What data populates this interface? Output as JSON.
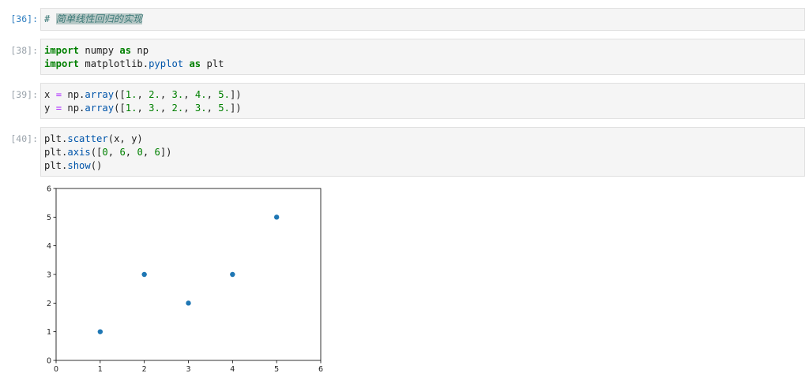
{
  "cells": [
    {
      "prompt": "[36]:",
      "lines": [
        [
          {
            "t": "# ",
            "c": "comment-text"
          },
          {
            "t": "简单线性回归的实现",
            "c": "comment-text comment-hl"
          }
        ]
      ]
    },
    {
      "prompt": "[38]:",
      "lines": [
        [
          {
            "t": "import",
            "c": "kw"
          },
          {
            "t": " numpy ",
            "c": ""
          },
          {
            "t": "as",
            "c": "kw"
          },
          {
            "t": " np",
            "c": ""
          }
        ],
        [
          {
            "t": "import",
            "c": "kw"
          },
          {
            "t": " matplotlib.",
            "c": ""
          },
          {
            "t": "pyplot",
            "c": "fn"
          },
          {
            "t": " ",
            "c": ""
          },
          {
            "t": "as",
            "c": "kw"
          },
          {
            "t": " plt",
            "c": ""
          }
        ]
      ]
    },
    {
      "prompt": "[39]:",
      "lines": [
        [
          {
            "t": "x ",
            "c": ""
          },
          {
            "t": "=",
            "c": "op"
          },
          {
            "t": " np.",
            "c": ""
          },
          {
            "t": "array",
            "c": "fn"
          },
          {
            "t": "([",
            "c": ""
          },
          {
            "t": "1.",
            "c": "num"
          },
          {
            "t": ", ",
            "c": ""
          },
          {
            "t": "2.",
            "c": "num"
          },
          {
            "t": ", ",
            "c": ""
          },
          {
            "t": "3.",
            "c": "num"
          },
          {
            "t": ", ",
            "c": ""
          },
          {
            "t": "4.",
            "c": "num"
          },
          {
            "t": ", ",
            "c": ""
          },
          {
            "t": "5.",
            "c": "num"
          },
          {
            "t": "])",
            "c": ""
          }
        ],
        [
          {
            "t": "y ",
            "c": ""
          },
          {
            "t": "=",
            "c": "op"
          },
          {
            "t": " np.",
            "c": ""
          },
          {
            "t": "array",
            "c": "fn"
          },
          {
            "t": "([",
            "c": ""
          },
          {
            "t": "1.",
            "c": "num"
          },
          {
            "t": ", ",
            "c": ""
          },
          {
            "t": "3.",
            "c": "num"
          },
          {
            "t": ", ",
            "c": ""
          },
          {
            "t": "2.",
            "c": "num"
          },
          {
            "t": ", ",
            "c": ""
          },
          {
            "t": "3.",
            "c": "num"
          },
          {
            "t": ", ",
            "c": ""
          },
          {
            "t": "5.",
            "c": "num"
          },
          {
            "t": "])",
            "c": ""
          }
        ]
      ]
    },
    {
      "prompt": "[40]:",
      "lines": [
        [
          {
            "t": "plt.",
            "c": ""
          },
          {
            "t": "scatter",
            "c": "fn"
          },
          {
            "t": "(x, y)",
            "c": ""
          }
        ],
        [
          {
            "t": "plt.",
            "c": ""
          },
          {
            "t": "axis",
            "c": "fn"
          },
          {
            "t": "([",
            "c": ""
          },
          {
            "t": "0",
            "c": "num"
          },
          {
            "t": ", ",
            "c": ""
          },
          {
            "t": "6",
            "c": "num"
          },
          {
            "t": ", ",
            "c": ""
          },
          {
            "t": "0",
            "c": "num"
          },
          {
            "t": ", ",
            "c": ""
          },
          {
            "t": "6",
            "c": "num"
          },
          {
            "t": "])",
            "c": ""
          }
        ],
        [
          {
            "t": "plt.",
            "c": ""
          },
          {
            "t": "show",
            "c": "fn"
          },
          {
            "t": "()",
            "c": ""
          }
        ]
      ]
    }
  ],
  "chart_data": {
    "type": "scatter",
    "x": [
      1,
      2,
      3,
      4,
      5
    ],
    "y": [
      1,
      3,
      2,
      3,
      5
    ],
    "xlim": [
      0,
      6
    ],
    "ylim": [
      0,
      6
    ],
    "xticks": [
      "0",
      "1",
      "2",
      "3",
      "4",
      "5",
      "6"
    ],
    "yticks": [
      "0",
      "1",
      "2",
      "3",
      "4",
      "5",
      "6"
    ],
    "title": "",
    "xlabel": "",
    "ylabel": "",
    "grid": false,
    "marker_color": "#1f77b4"
  }
}
